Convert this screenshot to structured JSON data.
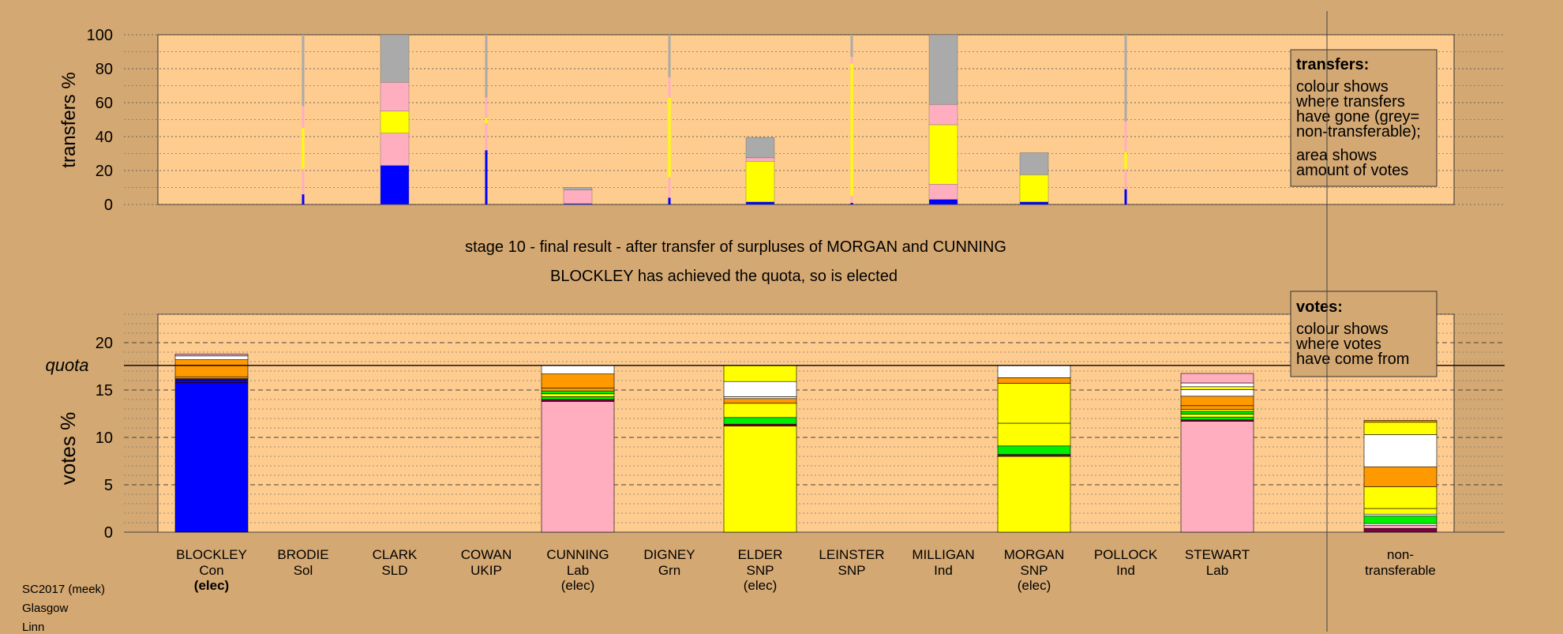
{
  "stage_title": "stage 10 - final result - after transfer of surpluses of MORGAN and CUNNING",
  "stage_subtitle": "BLOCKLEY has achieved the quota, so is elected",
  "footer": {
    "line1": "SC2017 (meek)",
    "line2": "Glasgow",
    "line3": "Linn"
  },
  "colors": {
    "Con": "#0000ff",
    "Lab": "#ffaec0",
    "SNP": "#ffff00",
    "Grn": "#00ee00",
    "Ind": "#ff9900",
    "SLD": "#ff9900",
    "Other": "#ffffff",
    "nontransferable": "#aaaaaa",
    "dark": "#800040"
  },
  "legend_transfers": {
    "title": "transfers:",
    "lines": [
      "colour shows",
      "where transfers",
      "have gone (grey=",
      "non-transferable);"
    ],
    "lines2": [
      "area shows",
      "amount of votes"
    ]
  },
  "legend_votes": {
    "title": "votes:",
    "lines": [
      "colour shows",
      "where votes",
      "have come from"
    ]
  },
  "chart_data": [
    {
      "type": "bar",
      "ylabel": "transfers %",
      "ylim": [
        0,
        100
      ],
      "yticks": [
        0,
        20,
        40,
        60,
        80,
        100
      ],
      "grid": true,
      "bars": [
        {
          "candidate": "BLOCKLEY",
          "thin": true,
          "segments": [
            {
              "party": "Con",
              "value": 6
            },
            {
              "party": "Lab",
              "value": 15
            },
            {
              "party": "SNP",
              "value": 24
            },
            {
              "party": "Lab",
              "value": 13
            },
            {
              "party": "nontransferable",
              "value": 42
            }
          ]
        },
        {
          "candidate": "BRODIE",
          "segments": [
            {
              "party": "Con",
              "value": 23
            },
            {
              "party": "Lab",
              "value": 19
            },
            {
              "party": "SNP",
              "value": 13
            },
            {
              "party": "Lab",
              "value": 17
            },
            {
              "party": "nontransferable",
              "value": 28
            }
          ]
        },
        {
          "candidate": "CLARK",
          "thin": true,
          "segments": [
            {
              "party": "Con",
              "value": 32
            },
            {
              "party": "Lab",
              "value": 16
            },
            {
              "party": "SNP",
              "value": 3
            },
            {
              "party": "Lab",
              "value": 12
            },
            {
              "party": "nontransferable",
              "value": 37
            }
          ]
        },
        {
          "candidate": "COWAN",
          "segments": [
            {
              "party": "Con",
              "value": 0.5
            },
            {
              "party": "Lab",
              "value": 8
            },
            {
              "party": "nontransferable",
              "value": 1.5
            }
          ]
        },
        {
          "candidate": "CUNNING",
          "thin": true,
          "segments": [
            {
              "party": "Con",
              "value": 4
            },
            {
              "party": "Lab",
              "value": 12
            },
            {
              "party": "SNP",
              "value": 47
            },
            {
              "party": "Lab",
              "value": 12
            },
            {
              "party": "nontransferable",
              "value": 25
            }
          ]
        },
        {
          "candidate": "DIGNEY",
          "segments": [
            {
              "party": "Con",
              "value": 1.5
            },
            {
              "party": "SNP",
              "value": 24
            },
            {
              "party": "Lab",
              "value": 2
            },
            {
              "party": "nontransferable",
              "value": 12
            }
          ]
        },
        {
          "candidate": "ELDER",
          "thin": true,
          "segments": [
            {
              "party": "Con",
              "value": 1
            },
            {
              "party": "Lab",
              "value": 4
            },
            {
              "party": "SNP",
              "value": 78
            },
            {
              "party": "Lab",
              "value": 4
            },
            {
              "party": "nontransferable",
              "value": 13
            }
          ]
        },
        {
          "candidate": "LEINSTER",
          "segments": [
            {
              "party": "Con",
              "value": 3
            },
            {
              "party": "Lab",
              "value": 9
            },
            {
              "party": "SNP",
              "value": 35
            },
            {
              "party": "Lab",
              "value": 12
            },
            {
              "party": "nontransferable",
              "value": 41
            }
          ]
        },
        {
          "candidate": "MILLIGAN",
          "segments": [
            {
              "party": "Con",
              "value": 1.5
            },
            {
              "party": "SNP",
              "value": 16
            },
            {
              "party": "nontransferable",
              "value": 13
            }
          ]
        },
        {
          "candidate": "MORGAN",
          "thin": true,
          "segments": [
            {
              "party": "Con",
              "value": 9
            },
            {
              "party": "Lab",
              "value": 12
            },
            {
              "party": "SNP",
              "value": 10
            },
            {
              "party": "Lab",
              "value": 18
            },
            {
              "party": "nontransferable",
              "value": 51
            }
          ]
        }
      ]
    },
    {
      "type": "bar",
      "ylabel": "votes %",
      "ylim": [
        0,
        23
      ],
      "yticks": [
        0,
        5,
        10,
        15,
        20
      ],
      "quota": 17.6,
      "quota_label": "quota",
      "grid": true,
      "categories": [
        {
          "name": "BLOCKLEY",
          "party": "Con",
          "status": "(elec)",
          "bold": true
        },
        {
          "name": "BRODIE",
          "party": "Sol",
          "status": ""
        },
        {
          "name": "CLARK",
          "party": "SLD",
          "status": ""
        },
        {
          "name": "COWAN",
          "party": "UKIP",
          "status": ""
        },
        {
          "name": "CUNNING",
          "party": "Lab",
          "status": "(elec)"
        },
        {
          "name": "DIGNEY",
          "party": "Grn",
          "status": ""
        },
        {
          "name": "ELDER",
          "party": "SNP",
          "status": "(elec)"
        },
        {
          "name": "LEINSTER",
          "party": "SNP",
          "status": ""
        },
        {
          "name": "MILLIGAN",
          "party": "Ind",
          "status": ""
        },
        {
          "name": "MORGAN",
          "party": "SNP",
          "status": "(elec)"
        },
        {
          "name": "POLLOCK",
          "party": "Ind",
          "status": ""
        },
        {
          "name": "STEWART",
          "party": "Lab",
          "status": ""
        }
      ],
      "nontransferable_label": [
        "non-",
        "transferable"
      ],
      "bars": [
        {
          "candidate": "BLOCKLEY",
          "segments": [
            {
              "party": "Con",
              "value": 15.8
            },
            {
              "party": "dark",
              "value": 0.15
            },
            {
              "party": "Con",
              "value": 0.25
            },
            {
              "party": "Ind",
              "value": 0.2
            },
            {
              "party": "Ind",
              "value": 1.8
            },
            {
              "party": "Other",
              "value": 0.4
            },
            {
              "party": "Lab",
              "value": 0.2
            }
          ]
        },
        {
          "candidate": "CUNNING",
          "segments": [
            {
              "party": "Lab",
              "value": 13.8
            },
            {
              "party": "dark",
              "value": 0.2
            },
            {
              "party": "Grn",
              "value": 0.3
            },
            {
              "party": "SNP",
              "value": 0.3
            },
            {
              "party": "Grn",
              "value": 0.3
            },
            {
              "party": "Ind",
              "value": 0.3
            },
            {
              "party": "Ind",
              "value": 1.5
            },
            {
              "party": "Other",
              "value": 0.9
            }
          ]
        },
        {
          "candidate": "ELDER",
          "segments": [
            {
              "party": "SNP",
              "value": 11.2
            },
            {
              "party": "dark",
              "value": 0.2
            },
            {
              "party": "Grn",
              "value": 0.7
            },
            {
              "party": "SNP",
              "value": 1.5
            },
            {
              "party": "Ind",
              "value": 0.5
            },
            {
              "party": "Other",
              "value": 0.2
            },
            {
              "party": "Other",
              "value": 1.6
            },
            {
              "party": "SNP",
              "value": 1.7
            }
          ]
        },
        {
          "candidate": "MORGAN",
          "segments": [
            {
              "party": "SNP",
              "value": 8.0
            },
            {
              "party": "dark",
              "value": 0.2
            },
            {
              "party": "Grn",
              "value": 0.9
            },
            {
              "party": "SNP",
              "value": 2.4
            },
            {
              "party": "SNP",
              "value": 4.2
            },
            {
              "party": "Ind",
              "value": 0.6
            },
            {
              "party": "Other",
              "value": 1.3
            }
          ]
        },
        {
          "candidate": "STEWART",
          "segments": [
            {
              "party": "Lab",
              "value": 11.7
            },
            {
              "party": "dark",
              "value": 0.15
            },
            {
              "party": "Grn",
              "value": 0.3
            },
            {
              "party": "SNP",
              "value": 0.3
            },
            {
              "party": "Grn",
              "value": 0.3
            },
            {
              "party": "SNP",
              "value": 0.2
            },
            {
              "party": "Ind",
              "value": 0.4
            },
            {
              "party": "Ind",
              "value": 1.0
            },
            {
              "party": "Other",
              "value": 0.7
            },
            {
              "party": "SNP",
              "value": 0.3
            },
            {
              "party": "Other",
              "value": 0.4
            },
            {
              "party": "Lab",
              "value": 1.0
            }
          ]
        },
        {
          "candidate": "nontransferable",
          "segments": [
            {
              "party": "dark",
              "value": 0.4
            },
            {
              "party": "Lab",
              "value": 0.3
            },
            {
              "party": "Other",
              "value": 0.2
            },
            {
              "party": "Grn",
              "value": 0.8
            },
            {
              "party": "Other",
              "value": 0.2
            },
            {
              "party": "SNP",
              "value": 0.6
            },
            {
              "party": "SNP",
              "value": 2.3
            },
            {
              "party": "Ind",
              "value": 2.1
            },
            {
              "party": "Other",
              "value": 3.4
            },
            {
              "party": "SNP",
              "value": 1.3
            },
            {
              "party": "Ind",
              "value": 0.2
            }
          ]
        }
      ]
    }
  ]
}
